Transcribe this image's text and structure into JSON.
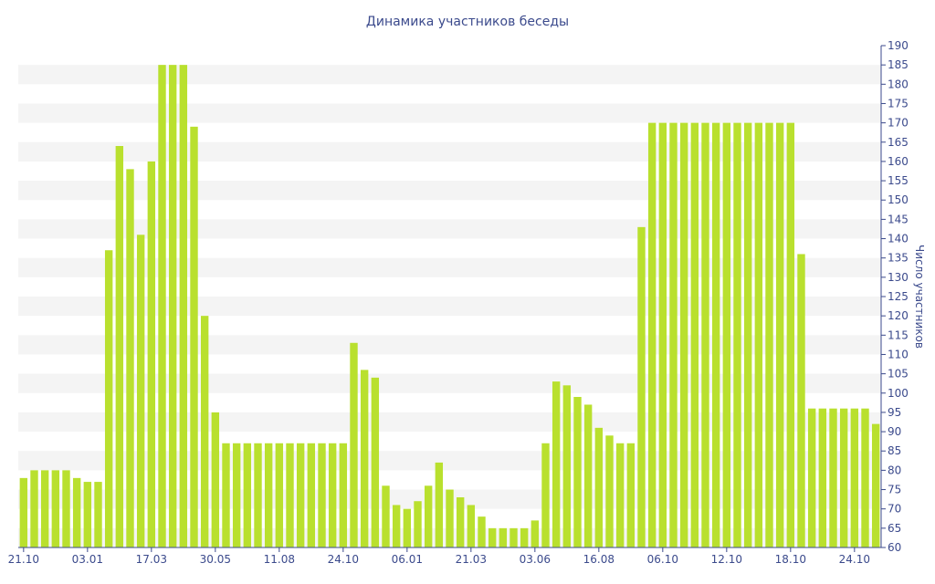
{
  "chart_data": {
    "type": "bar",
    "title": "Динамика участников беседы",
    "xlabel": "",
    "ylabel": "Число участников",
    "ylim": [
      60,
      190
    ],
    "y_tick_step": 5,
    "y_axis_position": "right",
    "grid": "alternating horizontal bands",
    "bar_color": "#b9e02e",
    "band_color": "#f4f4f4",
    "text_color": "#3b4a8c",
    "x_tick_labels": [
      {
        "index": 0,
        "label": "21.10"
      },
      {
        "index": 6,
        "label": "03.01"
      },
      {
        "index": 12,
        "label": "17.03"
      },
      {
        "index": 18,
        "label": "30.05"
      },
      {
        "index": 24,
        "label": "11.08"
      },
      {
        "index": 30,
        "label": "24.10"
      },
      {
        "index": 36,
        "label": "06.01"
      },
      {
        "index": 42,
        "label": "21.03"
      },
      {
        "index": 48,
        "label": "03.06"
      },
      {
        "index": 54,
        "label": "16.08"
      },
      {
        "index": 60,
        "label": "06.10"
      },
      {
        "index": 66,
        "label": "12.10"
      },
      {
        "index": 72,
        "label": "18.10"
      },
      {
        "index": 78,
        "label": "24.10"
      }
    ],
    "values": [
      78,
      80,
      80,
      80,
      80,
      78,
      77,
      77,
      137,
      164,
      158,
      141,
      160,
      185,
      185,
      185,
      169,
      120,
      95,
      87,
      87,
      87,
      87,
      87,
      87,
      87,
      87,
      87,
      87,
      87,
      87,
      113,
      106,
      104,
      76,
      71,
      70,
      72,
      76,
      82,
      75,
      73,
      71,
      68,
      65,
      65,
      65,
      65,
      67,
      87,
      103,
      102,
      99,
      97,
      91,
      89,
      87,
      87,
      143,
      170,
      170,
      170,
      170,
      170,
      170,
      170,
      170,
      170,
      170,
      170,
      170,
      170,
      170,
      136,
      96,
      96,
      96,
      96,
      96,
      96,
      92
    ]
  }
}
